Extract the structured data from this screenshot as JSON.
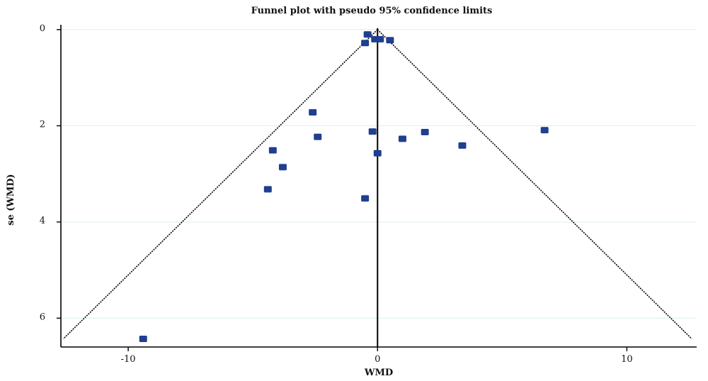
{
  "chart_data": {
    "type": "scatter",
    "title": "Funnel plot with pseudo 95% confidence limits",
    "xlabel": "WMD",
    "ylabel": "se (WMD)",
    "xlim": [
      -12.7,
      12.8
    ],
    "ylim": [
      6.6,
      -0.1
    ],
    "y_reversed": true,
    "x_ticks": [
      -10,
      0,
      10
    ],
    "y_ticks": [
      0,
      2,
      4,
      6
    ],
    "grid": "horizontal",
    "colors": {
      "points": "#1f3f8f",
      "lines": "#000000",
      "grid": "#dceeed"
    },
    "pooled_estimate": 0,
    "ci_multiplier": 1.96,
    "points": [
      {
        "x": -0.4,
        "y": 0.1
      },
      {
        "x": -0.5,
        "y": 0.28
      },
      {
        "x": -0.1,
        "y": 0.2
      },
      {
        "x": 0.1,
        "y": 0.2
      },
      {
        "x": 0.5,
        "y": 0.22
      },
      {
        "x": -2.6,
        "y": 1.72
      },
      {
        "x": -2.4,
        "y": 2.23
      },
      {
        "x": -0.2,
        "y": 2.12
      },
      {
        "x": 1.0,
        "y": 2.27
      },
      {
        "x": 1.9,
        "y": 2.13
      },
      {
        "x": 6.7,
        "y": 2.09
      },
      {
        "x": 3.4,
        "y": 2.41
      },
      {
        "x": -4.2,
        "y": 2.51
      },
      {
        "x": -3.8,
        "y": 2.86
      },
      {
        "x": 0.0,
        "y": 2.57
      },
      {
        "x": -4.4,
        "y": 3.32
      },
      {
        "x": -0.5,
        "y": 3.51
      },
      {
        "x": -9.4,
        "y": 6.43
      }
    ]
  }
}
